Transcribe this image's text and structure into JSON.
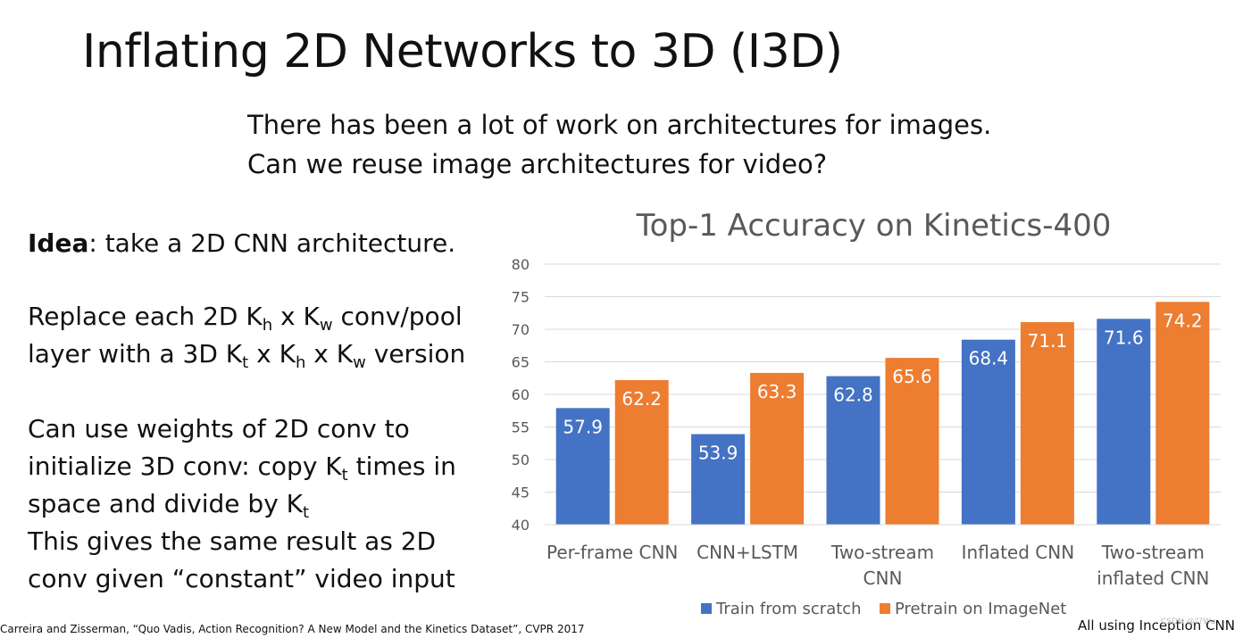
{
  "slide": {
    "title": "Inflating 2D Networks to 3D (I3D)",
    "subtitle_line1": "There has been a lot of work on architectures for images.",
    "subtitle_line2": "Can we reuse image architectures for video?",
    "idea_bold": "Idea",
    "idea_rest": ": take a 2D CNN architecture.",
    "replace_1a": "Replace each 2D K",
    "replace_1_sub_h": "h",
    "replace_1b": " x K",
    "replace_1_sub_w": "w",
    "replace_1c": " conv/pool",
    "replace_2a": "layer with a 3D K",
    "replace_2_sub_t": "t",
    "replace_2b": " x K",
    "replace_2_sub_h": "h",
    "replace_2c": " x K",
    "replace_2_sub_w": "w",
    "replace_2d": " version",
    "weights_1": "Can use weights of 2D conv to",
    "weights_2a": "initialize 3D conv: copy K",
    "weights_2_sub_t": "t",
    "weights_2b": " times in",
    "weights_3a": "space and divide by K",
    "weights_3_sub_t": "t",
    "same_1": "This gives the same result as 2D",
    "same_2": "conv given “constant” video input",
    "citation": "Carreira and Zisserman, “Quo Vadis, Action Recognition? A New Model and the Kinetics Dataset”, CVPR 2017",
    "footnote": "All using Inception CNN",
    "watermark": "CSDN @??Wu"
  },
  "chart_data": {
    "type": "bar",
    "title": "Top-1 Accuracy on Kinetics-400",
    "categories": [
      [
        "Per-frame CNN"
      ],
      [
        "CNN+LSTM"
      ],
      [
        "Two-stream",
        "CNN"
      ],
      [
        "Inflated CNN"
      ],
      [
        "Two-stream",
        "inflated CNN"
      ]
    ],
    "series": [
      {
        "name": "Train from scratch",
        "values": [
          57.9,
          53.9,
          62.8,
          68.4,
          71.6
        ],
        "color": "#4472C4"
      },
      {
        "name": "Pretrain on ImageNet",
        "values": [
          62.2,
          63.3,
          65.6,
          71.1,
          74.2
        ],
        "color": "#ED7D31"
      }
    ],
    "ylim": [
      40,
      80
    ],
    "yticks": [
      40,
      45,
      50,
      55,
      60,
      65,
      70,
      75,
      80
    ],
    "grid": true,
    "legend": "bottom",
    "data_labels": true
  }
}
